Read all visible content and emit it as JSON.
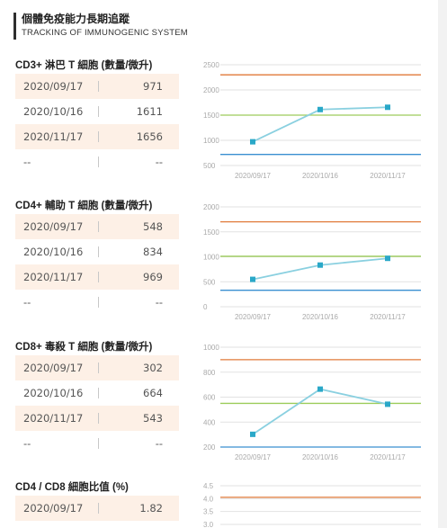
{
  "header": {
    "title": "個體免疫能力長期追蹤",
    "subtitle": "TRACKING OF IMMUNOGENIC SYSTEM"
  },
  "sections": [
    {
      "title": "CD3+ 淋巴 T 細胞 (數量/微升)",
      "rows": [
        {
          "date": "2020/09/17",
          "value": "971"
        },
        {
          "date": "2020/10/16",
          "value": "1611"
        },
        {
          "date": "2020/11/17",
          "value": "1656"
        },
        {
          "date": "--",
          "value": "--"
        }
      ]
    },
    {
      "title": "CD4+ 輔助 T 細胞 (數量/微升)",
      "rows": [
        {
          "date": "2020/09/17",
          "value": "548"
        },
        {
          "date": "2020/10/16",
          "value": "834"
        },
        {
          "date": "2020/11/17",
          "value": "969"
        },
        {
          "date": "--",
          "value": "--"
        }
      ]
    },
    {
      "title": "CD8+ 毒殺 T 細胞 (數量/微升)",
      "rows": [
        {
          "date": "2020/09/17",
          "value": "302"
        },
        {
          "date": "2020/10/16",
          "value": "664"
        },
        {
          "date": "2020/11/17",
          "value": "543"
        },
        {
          "date": "--",
          "value": "--"
        }
      ]
    },
    {
      "title": "CD4 / CD8 細胞比值 (%)",
      "rows": [
        {
          "date": "2020/09/17",
          "value": "1.82"
        }
      ]
    }
  ],
  "chart_data": [
    {
      "type": "line",
      "x": [
        "2020/09/17",
        "2020/10/16",
        "2020/11/17"
      ],
      "series": [
        {
          "values": [
            971,
            1611,
            1656
          ]
        }
      ],
      "yticks": [
        "2500",
        "2000",
        "1500",
        "1000",
        "500"
      ],
      "ylim": [
        500,
        2500
      ],
      "reference_lines": [
        {
          "value": 2300,
          "color": "#e07a3a"
        },
        {
          "value": 1500,
          "color": "#9ccc5a"
        },
        {
          "value": 720,
          "color": "#3a8fd0"
        }
      ],
      "line_color": "#8ad0e0",
      "marker_color": "#2aa8c8"
    },
    {
      "type": "line",
      "x": [
        "2020/09/17",
        "2020/10/16",
        "2020/11/17"
      ],
      "series": [
        {
          "values": [
            548,
            834,
            969
          ]
        }
      ],
      "yticks": [
        "2000",
        "1500",
        "1000",
        "500",
        "0"
      ],
      "ylim": [
        0,
        2000
      ],
      "reference_lines": [
        {
          "value": 1700,
          "color": "#e07a3a"
        },
        {
          "value": 1010,
          "color": "#9ccc5a"
        },
        {
          "value": 330,
          "color": "#3a8fd0"
        }
      ],
      "line_color": "#8ad0e0",
      "marker_color": "#2aa8c8"
    },
    {
      "type": "line",
      "x": [
        "2020/09/17",
        "2020/10/16",
        "2020/11/17"
      ],
      "series": [
        {
          "values": [
            302,
            664,
            543
          ]
        }
      ],
      "yticks": [
        "1000",
        "800",
        "600",
        "400",
        "200"
      ],
      "ylim": [
        200,
        1000
      ],
      "reference_lines": [
        {
          "value": 900,
          "color": "#e07a3a"
        },
        {
          "value": 550,
          "color": "#9ccc5a"
        },
        {
          "value": 200,
          "color": "#3a8fd0"
        }
      ],
      "line_color": "#8ad0e0",
      "marker_color": "#2aa8c8"
    },
    {
      "type": "line",
      "x": [],
      "series": [],
      "yticks": [
        "4.5",
        "4.0",
        "3.5",
        "3.0"
      ],
      "ylim": [
        3.0,
        4.5
      ],
      "reference_lines": [
        {
          "value": 4.05,
          "color": "#e07a3a"
        }
      ]
    }
  ]
}
